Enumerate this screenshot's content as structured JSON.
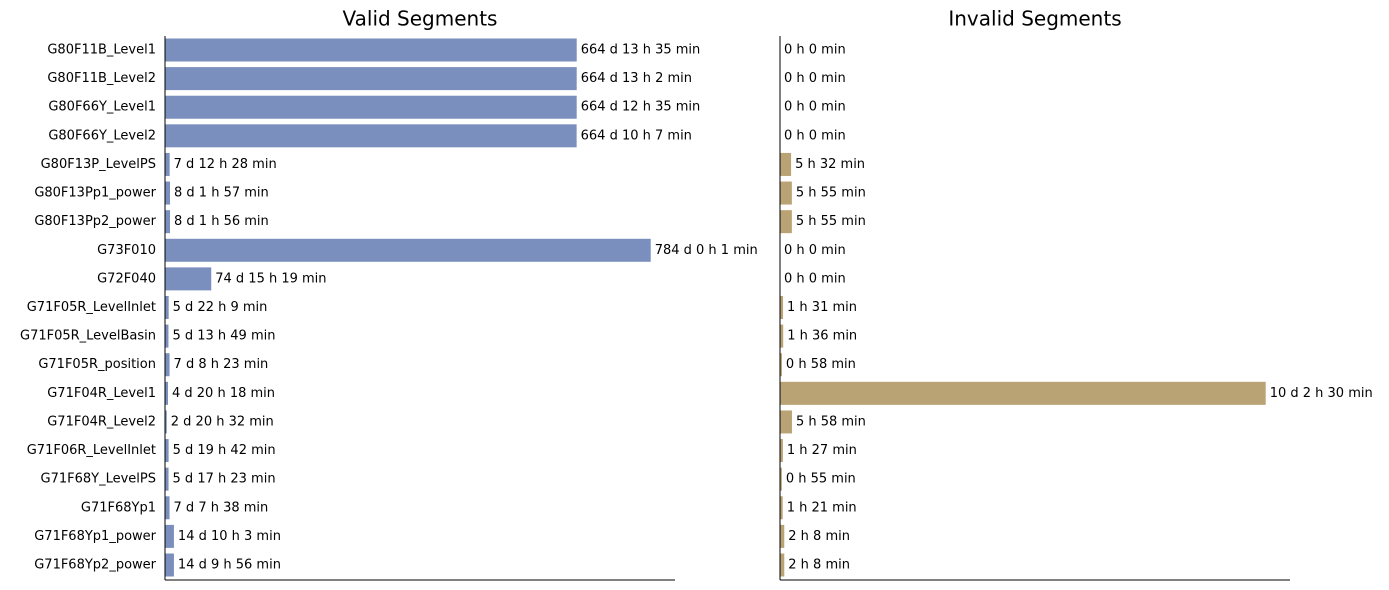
{
  "chart_data": [
    {
      "type": "bar",
      "orientation": "horizontal",
      "title": "Valid Segments",
      "color": "#7a8fbd",
      "categories": [
        "G80F11B_Level1",
        "G80F11B_Level2",
        "G80F66Y_Level1",
        "G80F66Y_Level2",
        "G80F13P_LevelPS",
        "G80F13Pp1_power",
        "G80F13Pp2_power",
        "G73F010",
        "G72F040",
        "G71F05R_LevelInlet",
        "G71F05R_LevelBasin",
        "G71F05R_position",
        "G71F04R_Level1",
        "G71F04R_Level2",
        "G71F06R_LevelInlet",
        "G71F68Y_LevelPS",
        "G71F68Yp1",
        "G71F68Yp1_power",
        "G71F68Yp2_power"
      ],
      "values": [
        956975,
        956942,
        956915,
        956767,
        10828,
        11637,
        11636,
        1128961,
        107479,
        8529,
        8029,
        10583,
        6978,
        4112,
        8382,
        8243,
        10538,
        20763,
        20756
      ],
      "value_labels": [
        "664 d 13 h 35 min",
        "664 d 13 h 2 min",
        "664 d 12 h 35 min",
        "664 d 10 h 7 min",
        "7 d 12 h 28 min",
        "8 d 1 h 57 min",
        "8 d 1 h 56 min",
        "784 d 0 h 1 min",
        "74 d 15 h 19 min",
        "5 d 22 h 9 min",
        "5 d 13 h 49 min",
        "7 d 8 h 23 min",
        "4 d 20 h 18 min",
        "2 d 20 h 32 min",
        "5 d 19 h 42 min",
        "5 d 17 h 23 min",
        "7 d 7 h 38 min",
        "14 d 10 h 3 min",
        "14 d 9 h 56 min"
      ],
      "xlim": [
        0,
        1185409
      ]
    },
    {
      "type": "bar",
      "orientation": "horizontal",
      "title": "Invalid Segments",
      "color": "#b9a273",
      "values": [
        0,
        0,
        0,
        0,
        332,
        355,
        355,
        0,
        0,
        91,
        96,
        58,
        14550,
        358,
        87,
        55,
        81,
        128,
        128
      ],
      "value_labels": [
        "0 h 0 min",
        "0 h 0 min",
        "0 h 0 min",
        "0 h 0 min",
        "5 h 32 min",
        "5 h 55 min",
        "5 h 55 min",
        "0 h 0 min",
        "0 h 0 min",
        "1 h 31 min",
        "1 h 36 min",
        "0 h 58 min",
        "10 d 2 h 30 min",
        "5 h 58 min",
        "1 h 27 min",
        "0 h 55 min",
        "1 h 21 min",
        "2 h 8 min",
        "2 h 8 min"
      ],
      "xlim": [
        0,
        15278
      ]
    }
  ]
}
